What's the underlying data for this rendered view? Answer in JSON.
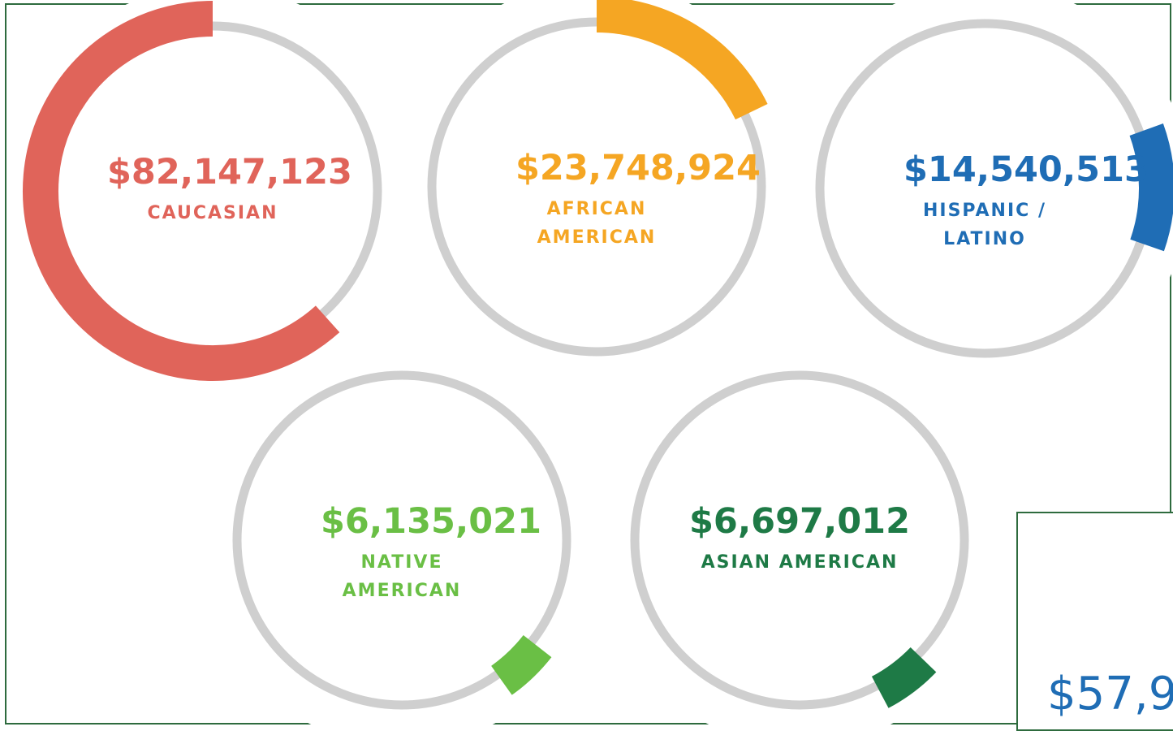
{
  "chart_data": {
    "type": "ring",
    "categories": [
      "CAUCASIAN",
      "AFRICAN AMERICAN",
      "HISPANIC / LATINO",
      "NATIVE AMERICAN",
      "ASIAN AMERICAN"
    ],
    "values": [
      82147123,
      23748924,
      14540513,
      6135021,
      6697012
    ],
    "value_labels": [
      "$82,147,123",
      "$23,748,924",
      "$14,540,513",
      "$6,135,021",
      "$6,697,012"
    ],
    "colors": [
      "#e0645a",
      "#f5a623",
      "#1f6db5",
      "#6abf45",
      "#1e7a46"
    ],
    "annotation": "$57,9"
  }
}
